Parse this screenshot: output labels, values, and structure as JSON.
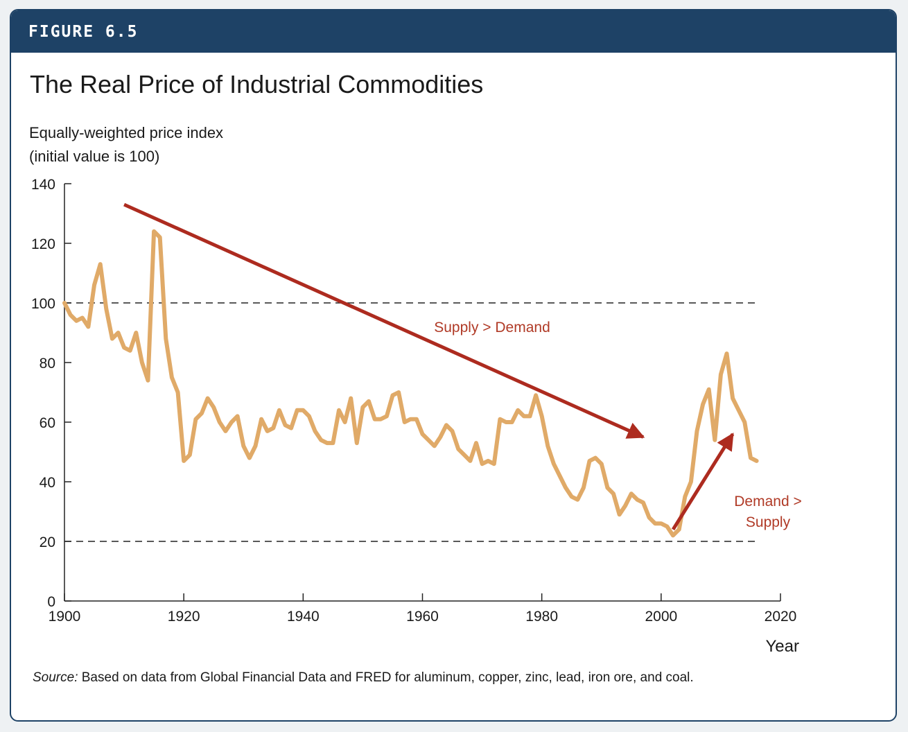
{
  "figure_label": "FIGURE 6.5",
  "source": {
    "prefix": "Source:",
    "text": " Based on data from Global Financial Data and FRED for aluminum, copper, zinc, lead, iron ore, and coal."
  },
  "colors": {
    "header_bg": "#1e4266",
    "series_line": "#e0aa68",
    "arrow": "#ad2b1f",
    "annotation_text": "#b03a26"
  },
  "chart_data": {
    "type": "line",
    "title": "The Real Price of Industrial Commodities",
    "ylabel_lines": [
      "Equally-weighted price index",
      "(initial value is 100)"
    ],
    "xlabel": "Year",
    "xlim": [
      1900,
      2020
    ],
    "ylim": [
      0,
      140
    ],
    "x_ticks": [
      1900,
      1920,
      1940,
      1960,
      1980,
      2000,
      2020
    ],
    "y_ticks": [
      0,
      20,
      40,
      60,
      80,
      100,
      120,
      140
    ],
    "grid": false,
    "reference_lines": [
      100,
      20
    ],
    "series": [
      {
        "x": [
          1900,
          1901,
          1902,
          1903,
          1904,
          1905,
          1906,
          1907,
          1908,
          1909,
          1910,
          1911,
          1912,
          1913,
          1914,
          1915,
          1916,
          1917,
          1918,
          1919,
          1920,
          1921,
          1922,
          1923,
          1924,
          1925,
          1926,
          1927,
          1928,
          1929,
          1930,
          1931,
          1932,
          1933,
          1934,
          1935,
          1936,
          1937,
          1938,
          1939,
          1940,
          1941,
          1942,
          1943,
          1944,
          1945,
          1946,
          1947,
          1948,
          1949,
          1950,
          1951,
          1952,
          1953,
          1954,
          1955,
          1956,
          1957,
          1958,
          1959,
          1960,
          1961,
          1962,
          1963,
          1964,
          1965,
          1966,
          1967,
          1968,
          1969,
          1970,
          1971,
          1972,
          1973,
          1974,
          1975,
          1976,
          1977,
          1978,
          1979,
          1980,
          1981,
          1982,
          1983,
          1984,
          1985,
          1986,
          1987,
          1988,
          1989,
          1990,
          1991,
          1992,
          1993,
          1994,
          1995,
          1996,
          1997,
          1998,
          1999,
          2000,
          2001,
          2002,
          2003,
          2004,
          2005,
          2006,
          2007,
          2008,
          2009,
          2010,
          2011,
          2012,
          2013,
          2014,
          2015,
          2016
        ],
        "y": [
          100,
          96,
          94,
          95,
          92,
          106,
          113,
          98,
          88,
          90,
          85,
          84,
          90,
          80,
          74,
          124,
          122,
          88,
          75,
          70,
          47,
          49,
          61,
          63,
          68,
          65,
          60,
          57,
          60,
          62,
          52,
          48,
          52,
          61,
          57,
          58,
          64,
          59,
          58,
          64,
          64,
          62,
          57,
          54,
          53,
          53,
          64,
          60,
          68,
          53,
          65,
          67,
          61,
          61,
          62,
          69,
          70,
          60,
          61,
          61,
          56,
          54,
          52,
          55,
          59,
          57,
          51,
          49,
          47,
          53,
          46,
          47,
          46,
          61,
          60,
          60,
          64,
          62,
          62,
          69,
          62,
          52,
          46,
          42,
          38,
          35,
          34,
          38,
          47,
          48,
          46,
          38,
          36,
          29,
          32,
          36,
          34,
          33,
          28,
          26,
          26,
          25,
          22,
          24,
          35,
          40,
          57,
          66,
          71,
          54,
          76,
          83,
          68,
          64,
          60,
          48,
          47
        ]
      }
    ],
    "annotations": [
      {
        "text": "Supply > Demand",
        "type": "arrow",
        "from": [
          1910,
          133
        ],
        "to": [
          1997,
          55
        ]
      },
      {
        "text": "Demand >",
        "text2": "Supply",
        "type": "arrow",
        "from": [
          2002,
          24
        ],
        "to": [
          2012,
          56
        ]
      }
    ]
  }
}
